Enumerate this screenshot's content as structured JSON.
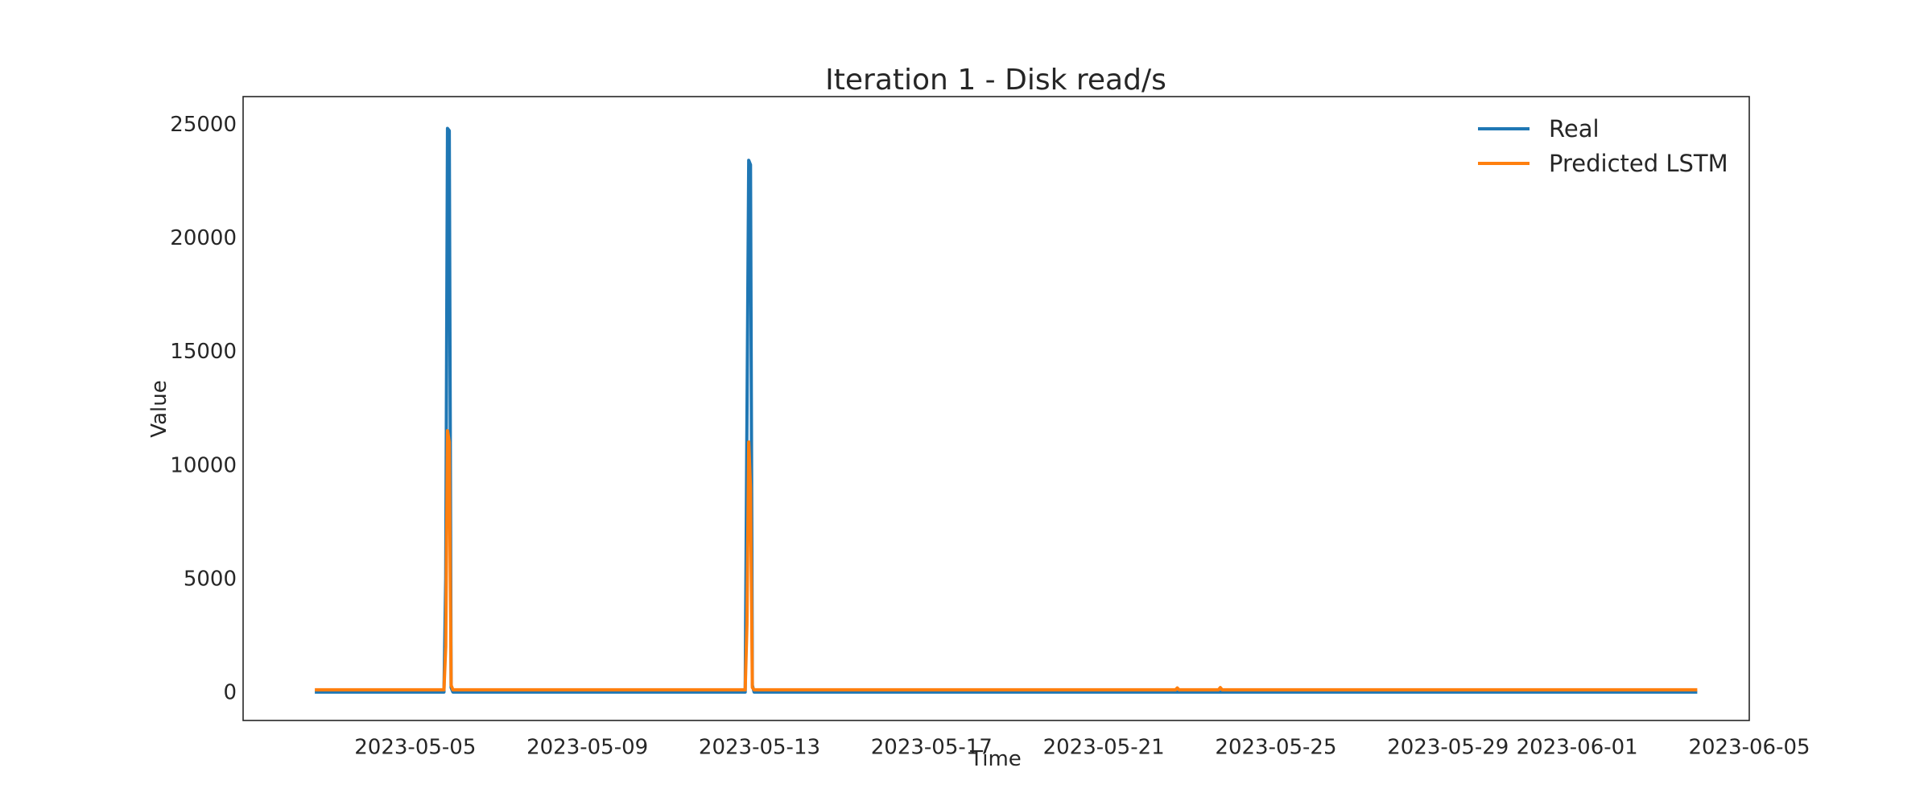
{
  "chart_data": {
    "type": "line",
    "title": "Iteration 1 - Disk read/s",
    "xlabel": "Time",
    "ylabel": "Value",
    "xlim": [
      "2023-05-01",
      "2023-06-05"
    ],
    "ylim": [
      -1250,
      26200
    ],
    "yticks": [
      0,
      5000,
      10000,
      15000,
      20000,
      25000
    ],
    "xticks": [
      "2023-05-05",
      "2023-05-09",
      "2023-05-13",
      "2023-05-17",
      "2023-05-21",
      "2023-05-25",
      "2023-05-29",
      "2023-06-01",
      "2023-06-05"
    ],
    "grid": false,
    "legend_position": "top-right",
    "series": [
      {
        "name": "Real",
        "color": "#1f77b4",
        "points": [
          [
            "2023-05-02T16:00",
            0
          ],
          [
            "2023-05-05T16:00",
            0
          ],
          [
            "2023-05-05T17:00",
            5000
          ],
          [
            "2023-05-05T18:00",
            24800
          ],
          [
            "2023-05-05T19:00",
            24700
          ],
          [
            "2023-05-05T20:00",
            200
          ],
          [
            "2023-05-05T21:00",
            0
          ],
          [
            "2023-05-12T16:00",
            0
          ],
          [
            "2023-05-12T17:00",
            12000
          ],
          [
            "2023-05-12T18:00",
            23400
          ],
          [
            "2023-05-12T19:00",
            23200
          ],
          [
            "2023-05-12T20:00",
            300
          ],
          [
            "2023-05-12T21:00",
            0
          ],
          [
            "2023-06-03T19:00",
            0
          ]
        ]
      },
      {
        "name": "Predicted LSTM",
        "color": "#ff7f0e",
        "points": [
          [
            "2023-05-02T16:00",
            100
          ],
          [
            "2023-05-05T16:00",
            100
          ],
          [
            "2023-05-05T17:00",
            2000
          ],
          [
            "2023-05-05T18:00",
            11500
          ],
          [
            "2023-05-05T19:00",
            11000
          ],
          [
            "2023-05-05T20:00",
            300
          ],
          [
            "2023-05-05T21:00",
            100
          ],
          [
            "2023-05-12T16:00",
            100
          ],
          [
            "2023-05-12T17:00",
            3000
          ],
          [
            "2023-05-12T18:00",
            11000
          ],
          [
            "2023-05-12T19:00",
            9000
          ],
          [
            "2023-05-12T20:00",
            200
          ],
          [
            "2023-05-12T21:00",
            100
          ],
          [
            "2023-05-22T16:00",
            100
          ],
          [
            "2023-05-22T17:00",
            180
          ],
          [
            "2023-05-22T18:00",
            100
          ],
          [
            "2023-05-23T16:00",
            100
          ],
          [
            "2023-05-23T17:00",
            200
          ],
          [
            "2023-05-23T18:00",
            100
          ],
          [
            "2023-06-03T19:00",
            100
          ]
        ]
      }
    ]
  }
}
